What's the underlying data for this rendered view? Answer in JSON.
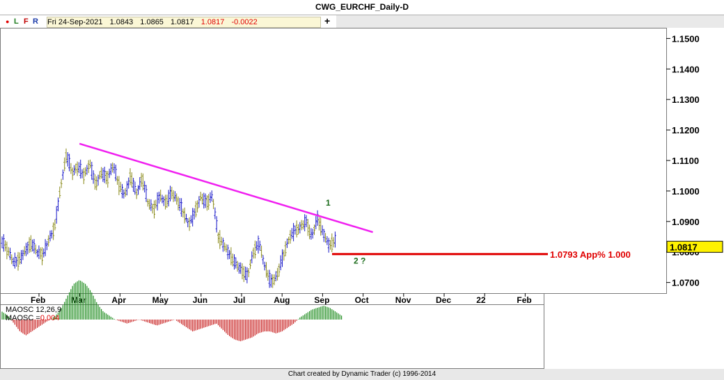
{
  "window": {
    "title": "CWG_EURCHF_Daily-D"
  },
  "toolbar": {
    "dot": "●",
    "letters": [
      "L",
      "F",
      "R"
    ],
    "ohlc": {
      "date": "Fri 24-Sep-2021",
      "open": "1.0843",
      "high": "1.0865",
      "low": "1.0817",
      "close": "1.0817",
      "change": "-0.0022"
    },
    "plus": "+"
  },
  "colors": {
    "up_bar": "#1515c8",
    "down_bar": "#8a8a1a",
    "trendline": "#f020f0",
    "target_line": "#e00000",
    "wave_label": "#1a6b1a",
    "osc_pos": "#1e8c1e",
    "osc_neg": "#c81e1e",
    "last_price_bg": "#fff200"
  },
  "chart_data": {
    "type": "bar",
    "title": "CWG_EURCHF_Daily-D",
    "price_axis": {
      "ticks": [
        "1.1500",
        "1.1400",
        "1.1300",
        "1.1200",
        "1.1100",
        "1.1000",
        "1.0900",
        "1.0800",
        "1.0700"
      ],
      "min": 1.0665,
      "max": 1.1535,
      "last_price": "1.0817"
    },
    "time_axis": {
      "labels": [
        "Feb",
        "Mar",
        "Apr",
        "May",
        "Jun",
        "Jul",
        "Aug",
        "Sep",
        "Oct",
        "Nov",
        "Dec",
        "22",
        "Feb"
      ]
    },
    "price_path": [
      1.0835,
      1.0805,
      1.0765,
      1.0775,
      1.0805,
      1.083,
      1.08,
      1.079,
      1.084,
      1.088,
      1.101,
      1.112,
      1.106,
      1.108,
      1.105,
      1.109,
      1.102,
      1.106,
      1.104,
      1.1085,
      1.102,
      1.0985,
      1.105,
      1.099,
      1.1045,
      1.096,
      1.094,
      1.0985,
      1.096,
      1.0995,
      1.097,
      1.093,
      1.089,
      1.093,
      1.098,
      1.096,
      1.0985,
      1.085,
      1.082,
      1.079,
      1.076,
      1.074,
      1.072,
      1.08,
      1.083,
      1.075,
      1.07,
      1.072,
      1.078,
      1.084,
      1.087,
      1.088,
      1.09,
      1.085,
      1.091,
      1.086,
      1.082,
      1.084
    ],
    "trendline": {
      "start": {
        "month": "Mar",
        "price": 1.1155
      },
      "end": {
        "month": "Oct",
        "price": 1.0865
      }
    },
    "target": {
      "price": 1.0793,
      "label": "1.0793 App% 1.000"
    },
    "annotations": [
      {
        "text": "1",
        "price": 1.095
      },
      {
        "text": "2 ?",
        "price": 1.0775
      }
    ],
    "oscillator": {
      "name": "MAOSC 12,26,9",
      "value_label": "MAOSC =",
      "value": "0.004",
      "values": [
        0.2,
        0.1,
        -0.1,
        -0.3,
        -0.4,
        -0.3,
        -0.2,
        -0.1,
        0.0,
        0.1,
        0.3,
        0.6,
        0.9,
        1.0,
        0.9,
        0.7,
        0.4,
        0.2,
        0.1,
        0.0,
        -0.05,
        -0.1,
        -0.05,
        0.0,
        -0.05,
        -0.1,
        -0.15,
        -0.1,
        -0.05,
        0.0,
        -0.1,
        -0.2,
        -0.3,
        -0.25,
        -0.2,
        -0.15,
        -0.1,
        -0.25,
        -0.4,
        -0.5,
        -0.55,
        -0.5,
        -0.45,
        -0.35,
        -0.3,
        -0.3,
        -0.35,
        -0.3,
        -0.2,
        -0.1,
        0.05,
        0.15,
        0.25,
        0.3,
        0.35,
        0.3,
        0.2,
        0.1
      ]
    }
  },
  "footer": {
    "text": "Chart created by Dynamic Trader  (c)  1996-2014"
  }
}
